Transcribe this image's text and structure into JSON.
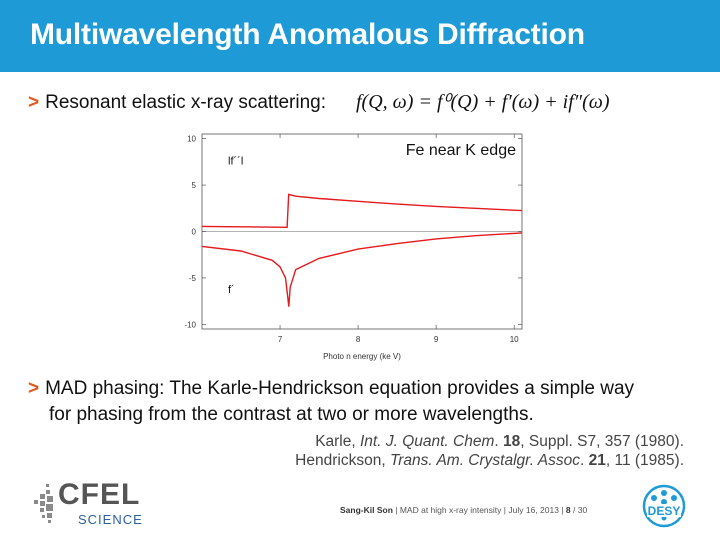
{
  "slide": {
    "title": "Multiwavelength Anomalous Diffraction",
    "bullet1": "Resonant elastic x-ray scattering:",
    "formula": "f(Q, ω) = f⁰(Q) + f′(ω) + if″(ω)",
    "bullet2_line1": "MAD phasing: The Karle-Hendrickson equation provides a simple way",
    "bullet2_line2": "for phasing from the contrast at two or more wavelengths.",
    "ref1": {
      "authors": "Karle, ",
      "journal": "Int. J. Quant. Chem",
      "rest_a": ". ",
      "vol": "18",
      "rest_b": ", Suppl. S7, 357 (1980)."
    },
    "ref2": {
      "authors": "Hendrickson, ",
      "journal": "Trans. Am. Crystalgr. Assoc",
      "rest_a": ". ",
      "vol": "21",
      "rest_b": ", 11 (1985)."
    },
    "bullet_marker": ">"
  },
  "footer": {
    "logo_main": "CFEL",
    "logo_sub": "SCIENCE",
    "author": "Sang-Kil Son",
    "talk": "MAD at high x-ray intensity",
    "date": "July 16, 2013",
    "page": "8",
    "total": "/ 30",
    "desy": "DESY"
  },
  "colors": {
    "title_bar": "#1e9ad6",
    "bullet": "#e05a1b",
    "curve": "#e41a1c"
  },
  "chart_data": {
    "type": "line",
    "title": "Fe near K edge",
    "xlabel": "Photo n energy (ke V)",
    "ylabel": "",
    "xlim": [
      6.0,
      10.1
    ],
    "ylim": [
      -10.5,
      10.5
    ],
    "xticks": [
      "7",
      "8",
      "9",
      "10"
    ],
    "yticks": [
      "10",
      "5",
      "0",
      "-5",
      "-10"
    ],
    "grid": false,
    "series": [
      {
        "name": "lf´´l",
        "label_pos": "upper-left",
        "x": [
          6.0,
          7.09,
          7.111,
          7.2,
          7.5,
          8.0,
          8.5,
          9.0,
          9.5,
          10.1
        ],
        "y": [
          0.55,
          0.45,
          4.0,
          3.8,
          3.55,
          3.25,
          2.95,
          2.7,
          2.5,
          2.25
        ]
      },
      {
        "name": "f´",
        "label_pos": "lower-left",
        "x": [
          6.0,
          6.5,
          6.9,
          7.0,
          7.07,
          7.1,
          7.112,
          7.13,
          7.2,
          7.5,
          8.0,
          8.5,
          9.0,
          9.5,
          10.1
        ],
        "y": [
          -1.6,
          -2.1,
          -3.1,
          -3.8,
          -5.0,
          -7.2,
          -8.1,
          -6.0,
          -4.1,
          -2.9,
          -1.9,
          -1.3,
          -0.8,
          -0.45,
          -0.15
        ]
      }
    ]
  }
}
